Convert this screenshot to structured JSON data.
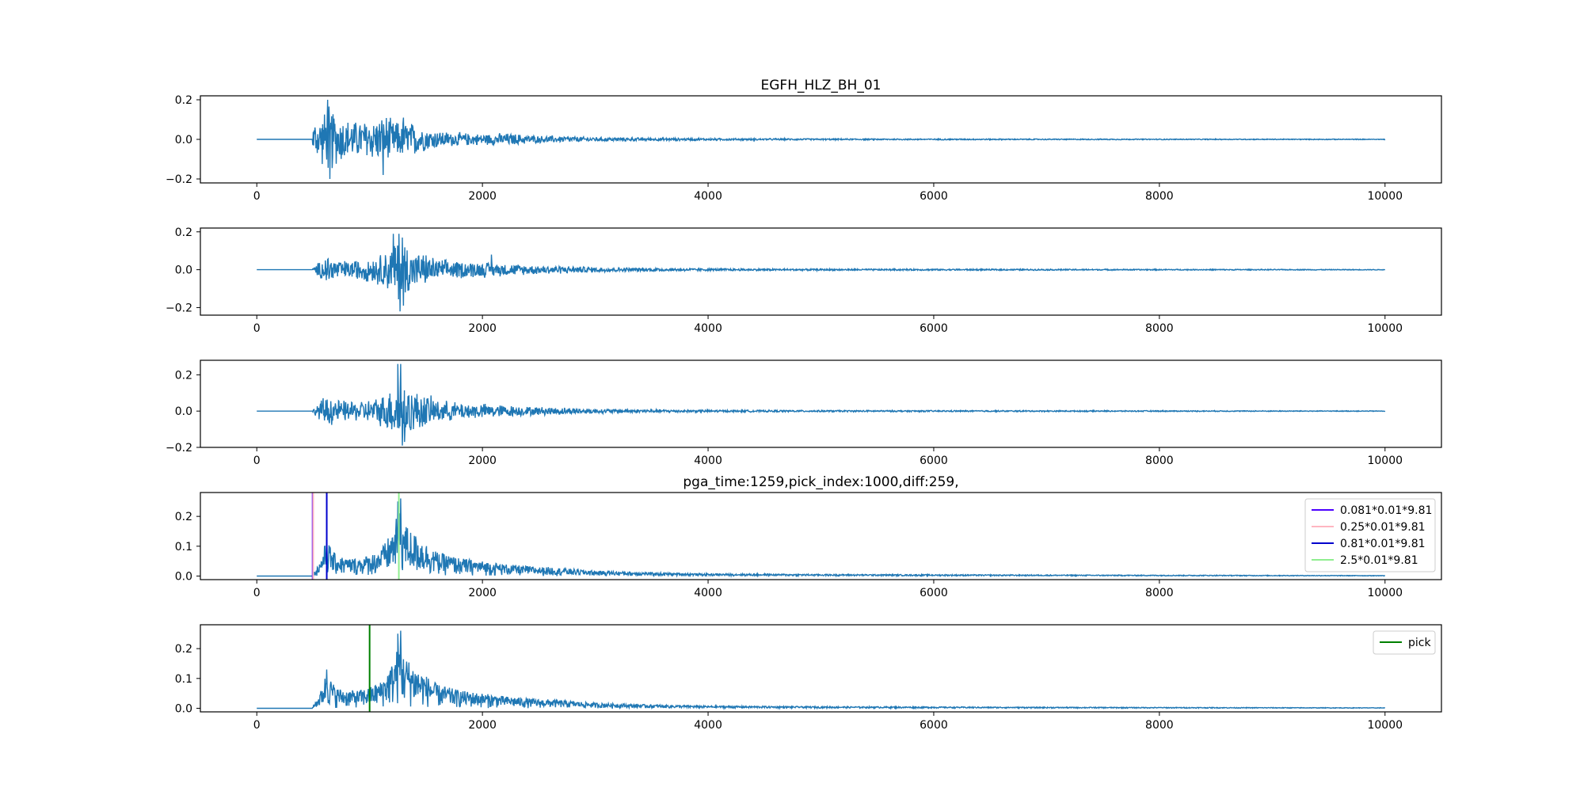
{
  "figure": {
    "title": "EGFH_HLZ_BH_01",
    "background": "#ffffff"
  },
  "chart_data": [
    {
      "type": "line",
      "id": "panel-1",
      "title": "EGFH_HLZ_BH_01",
      "xlabel": "",
      "ylabel": "",
      "xlim": [
        -500,
        10500
      ],
      "ylim": [
        -0.22,
        0.22
      ],
      "xticks": [
        0,
        2000,
        4000,
        6000,
        8000,
        10000
      ],
      "yticks": [
        -0.2,
        0.0,
        0.2
      ],
      "ytick_labels": [
        "−0.2",
        "0.0",
        "0.2"
      ],
      "grid": false,
      "legend": null,
      "series": [
        {
          "color": "#1f77b4",
          "envelope": {
            "x": [
              0,
              490,
              500,
              560,
              620,
              650,
              700,
              800,
              900,
              1000,
              1100,
              1150,
              1200,
              1300,
              1400,
              1500,
              1700,
              2000,
              2200,
              2500,
              2600,
              3000,
              3500,
              4000,
              5000,
              7000,
              10000
            ],
            "amp": [
              0,
              0,
              0.09,
              0.12,
              0.17,
              0.2,
              0.14,
              0.11,
              0.1,
              0.11,
              0.12,
              0.14,
              0.1,
              0.1,
              0.09,
              0.06,
              0.04,
              0.03,
              0.035,
              0.02,
              0.02,
              0.012,
              0.008,
              0.006,
              0.004,
              0.003,
              0.002
            ]
          },
          "peaks": [
            [
              628,
              0.2
            ],
            [
              648,
              -0.2
            ],
            [
              1120,
              -0.18
            ],
            [
              1300,
              0.11
            ]
          ]
        }
      ],
      "vlines": []
    },
    {
      "type": "line",
      "id": "panel-2",
      "title": "",
      "xlabel": "",
      "ylabel": "",
      "xlim": [
        -500,
        10500
      ],
      "ylim": [
        -0.24,
        0.22
      ],
      "xticks": [
        0,
        2000,
        4000,
        6000,
        8000,
        10000
      ],
      "yticks": [
        -0.2,
        0.0,
        0.2
      ],
      "ytick_labels": [
        "−0.2",
        "0.0",
        "0.2"
      ],
      "grid": false,
      "legend": null,
      "series": [
        {
          "color": "#1f77b4",
          "envelope": {
            "x": [
              0,
              490,
              500,
              560,
              620,
              700,
              800,
              900,
              1000,
              1100,
              1200,
              1260,
              1300,
              1400,
              1500,
              1600,
              1800,
              2000,
              2200,
              2500,
              2600,
              3000,
              3500,
              4000,
              5000,
              7000,
              10000
            ],
            "amp": [
              0,
              0,
              0.01,
              0.05,
              0.09,
              0.06,
              0.05,
              0.06,
              0.07,
              0.09,
              0.14,
              0.2,
              0.18,
              0.1,
              0.09,
              0.06,
              0.05,
              0.045,
              0.035,
              0.025,
              0.025,
              0.015,
              0.01,
              0.007,
              0.005,
              0.004,
              0.002
            ]
          },
          "peaks": [
            [
              1210,
              0.19
            ],
            [
              1260,
              0.19
            ],
            [
              1270,
              -0.22
            ],
            [
              1290,
              0.17
            ],
            [
              1300,
              -0.19
            ],
            [
              2080,
              0.08
            ]
          ]
        }
      ],
      "vlines": []
    },
    {
      "type": "line",
      "id": "panel-3",
      "title": "",
      "xlabel": "",
      "ylabel": "",
      "xlim": [
        -500,
        10500
      ],
      "ylim": [
        -0.2,
        0.28
      ],
      "xticks": [
        0,
        2000,
        4000,
        6000,
        8000,
        10000
      ],
      "yticks": [
        -0.2,
        0.0,
        0.2
      ],
      "ytick_labels": [
        "−0.2",
        "0.0",
        "0.2"
      ],
      "grid": false,
      "legend": null,
      "series": [
        {
          "color": "#1f77b4",
          "envelope": {
            "x": [
              0,
              490,
              500,
              560,
              620,
              700,
              800,
              900,
              1000,
              1100,
              1200,
              1260,
              1300,
              1400,
              1500,
              1600,
              1800,
              2000,
              2200,
              2500,
              2600,
              3000,
              3500,
              4000,
              5000,
              7000,
              10000
            ],
            "amp": [
              0,
              0,
              0.01,
              0.06,
              0.1,
              0.07,
              0.06,
              0.06,
              0.07,
              0.09,
              0.14,
              0.2,
              0.18,
              0.12,
              0.1,
              0.07,
              0.05,
              0.045,
              0.035,
              0.025,
              0.025,
              0.015,
              0.01,
              0.007,
              0.005,
              0.004,
              0.002
            ]
          },
          "peaks": [
            [
              1250,
              0.26
            ],
            [
              1275,
              0.26
            ],
            [
              1290,
              -0.19
            ],
            [
              1310,
              -0.17
            ]
          ]
        }
      ],
      "vlines": []
    },
    {
      "type": "line",
      "id": "panel-4",
      "title": "pga_time:1259,pick_index:1000,diff:259,",
      "xlabel": "",
      "ylabel": "",
      "xlim": [
        -500,
        10500
      ],
      "ylim": [
        -0.012,
        0.28
      ],
      "xticks": [
        0,
        2000,
        4000,
        6000,
        8000,
        10000
      ],
      "yticks": [
        0.0,
        0.1,
        0.2
      ],
      "ytick_labels": [
        "0.0",
        "0.1",
        "0.2"
      ],
      "grid": false,
      "legend": {
        "position": "upper right",
        "entries": [
          {
            "label": "0.081*0.01*9.81",
            "color": "#4b00ff"
          },
          {
            "label": "0.25*0.01*9.81",
            "color": "#ffb6c1"
          },
          {
            "label": "0.81*0.01*9.81",
            "color": "#0000cd"
          },
          {
            "label": "2.5*0.01*9.81",
            "color": "#90ee90"
          }
        ]
      },
      "series": [
        {
          "color": "#1f77b4",
          "abs": true,
          "envelope": {
            "x": [
              0,
              490,
              500,
              560,
              600,
              620,
              650,
              700,
              800,
              900,
              1000,
              1100,
              1200,
              1260,
              1300,
              1400,
              1500,
              1600,
              1800,
              2000,
              2200,
              2500,
              2600,
              3000,
              3500,
              4000,
              5000,
              7000,
              10000
            ],
            "amp": [
              0,
              0,
              0.01,
              0.05,
              0.1,
              0.13,
              0.1,
              0.07,
              0.06,
              0.06,
              0.07,
              0.09,
              0.15,
              0.22,
              0.18,
              0.14,
              0.11,
              0.08,
              0.06,
              0.05,
              0.04,
              0.03,
              0.03,
              0.018,
              0.012,
              0.008,
              0.006,
              0.004,
              0.002
            ]
          },
          "peaks": [
            [
              1250,
              0.25
            ],
            [
              1275,
              0.26
            ],
            [
              620,
              0.13
            ]
          ]
        }
      ],
      "vlines": [
        {
          "x": 495,
          "color": "#4b00ff"
        },
        {
          "x": 500,
          "color": "#ffb6c1"
        },
        {
          "x": 620,
          "color": "#0000cd"
        },
        {
          "x": 1259,
          "color": "#90ee90"
        }
      ]
    },
    {
      "type": "line",
      "id": "panel-5",
      "title": "",
      "xlabel": "",
      "ylabel": "",
      "xlim": [
        -500,
        10500
      ],
      "ylim": [
        -0.012,
        0.28
      ],
      "xticks": [
        0,
        2000,
        4000,
        6000,
        8000,
        10000
      ],
      "yticks": [
        0.0,
        0.1,
        0.2
      ],
      "ytick_labels": [
        "0.0",
        "0.1",
        "0.2"
      ],
      "grid": false,
      "legend": {
        "position": "upper right",
        "entries": [
          {
            "label": "pick",
            "color": "#008000"
          }
        ]
      },
      "series": [
        {
          "color": "#1f77b4",
          "abs": true,
          "envelope": {
            "x": [
              0,
              490,
              500,
              560,
              600,
              620,
              650,
              700,
              800,
              900,
              1000,
              1100,
              1200,
              1260,
              1300,
              1400,
              1500,
              1600,
              1800,
              2000,
              2200,
              2500,
              2600,
              3000,
              3500,
              4000,
              5000,
              7000,
              10000
            ],
            "amp": [
              0,
              0,
              0.01,
              0.05,
              0.1,
              0.13,
              0.1,
              0.07,
              0.06,
              0.06,
              0.07,
              0.09,
              0.15,
              0.22,
              0.18,
              0.14,
              0.11,
              0.08,
              0.06,
              0.05,
              0.04,
              0.03,
              0.03,
              0.018,
              0.012,
              0.008,
              0.006,
              0.004,
              0.002
            ]
          },
          "peaks": [
            [
              1250,
              0.25
            ],
            [
              1275,
              0.26
            ],
            [
              620,
              0.13
            ]
          ]
        }
      ],
      "vlines": [
        {
          "x": 1000,
          "color": "#008000"
        }
      ]
    }
  ]
}
